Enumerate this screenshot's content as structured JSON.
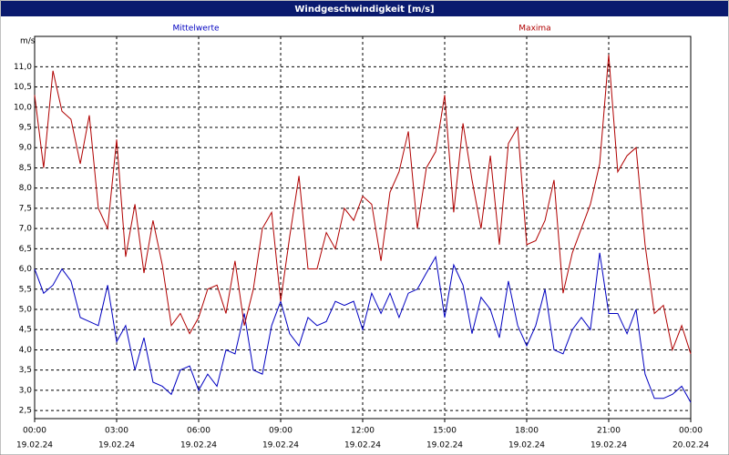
{
  "chart_data": {
    "type": "line",
    "title": "Windgeschwindigkeit [m/s]",
    "y_label": "m/s",
    "x": [
      0,
      0.33,
      0.67,
      1,
      1.33,
      1.67,
      2,
      2.33,
      2.67,
      3,
      3.33,
      3.67,
      4,
      4.33,
      4.67,
      5,
      5.33,
      5.67,
      6,
      6.33,
      6.67,
      7,
      7.33,
      7.67,
      8,
      8.33,
      8.67,
      9,
      9.33,
      9.67,
      10,
      10.33,
      10.67,
      11,
      11.33,
      11.67,
      12,
      12.33,
      12.67,
      13,
      13.33,
      13.67,
      14,
      14.33,
      14.67,
      15,
      15.33,
      15.67,
      16,
      16.33,
      16.67,
      17,
      17.33,
      17.67,
      18,
      18.33,
      18.67,
      19,
      19.33,
      19.67,
      20,
      20.33,
      20.67,
      21,
      21.33,
      21.67,
      22,
      22.33,
      22.67,
      23,
      23.33,
      23.67,
      24
    ],
    "series": [
      {
        "name": "Mittelwerte",
        "color": "#0000c0",
        "values": [
          6.0,
          5.4,
          5.6,
          6.0,
          5.7,
          4.8,
          4.7,
          4.6,
          5.6,
          4.2,
          4.6,
          3.5,
          4.3,
          3.2,
          3.1,
          2.9,
          3.5,
          3.6,
          3.0,
          3.4,
          3.1,
          4.0,
          3.9,
          4.9,
          3.5,
          3.4,
          4.6,
          5.2,
          4.4,
          4.1,
          4.8,
          4.6,
          4.7,
          5.2,
          5.1,
          5.2,
          4.5,
          5.4,
          4.9,
          5.4,
          4.8,
          5.4,
          5.5,
          5.9,
          6.3,
          4.8,
          6.1,
          5.6,
          4.4,
          5.3,
          5.0,
          4.3,
          5.7,
          4.6,
          4.1,
          4.6,
          5.5,
          4.0,
          3.9,
          4.5,
          4.8,
          4.5,
          6.4,
          4.9,
          4.9,
          4.4,
          5.0,
          3.4,
          2.8,
          2.8,
          2.9,
          3.1,
          2.7
        ]
      },
      {
        "name": "Maxima",
        "color": "#b00000",
        "values": [
          10.3,
          8.5,
          10.9,
          9.9,
          9.7,
          8.6,
          9.8,
          7.5,
          7.0,
          9.2,
          6.3,
          7.6,
          5.9,
          7.2,
          6.1,
          4.6,
          4.9,
          4.4,
          4.8,
          5.5,
          5.6,
          4.9,
          6.2,
          4.6,
          5.5,
          7.0,
          7.4,
          5.2,
          6.8,
          8.3,
          6.0,
          6.0,
          6.9,
          6.5,
          7.5,
          7.2,
          7.8,
          7.6,
          6.2,
          7.9,
          8.4,
          9.4,
          7.0,
          8.5,
          8.9,
          10.3,
          7.4,
          9.6,
          8.2,
          7.0,
          8.8,
          6.6,
          9.1,
          9.5,
          6.6,
          6.7,
          7.2,
          8.2,
          5.4,
          6.4,
          7.0,
          7.6,
          8.6,
          11.3,
          8.4,
          8.8,
          9.0,
          6.6,
          4.9,
          5.1,
          4.0,
          4.6,
          3.9
        ]
      }
    ],
    "xlim": [
      0,
      24
    ],
    "xticks": [
      {
        "value": 0,
        "label": "00:00"
      },
      {
        "value": 3,
        "label": "03:00"
      },
      {
        "value": 6,
        "label": "06:00"
      },
      {
        "value": 9,
        "label": "09:00"
      },
      {
        "value": 12,
        "label": "12:00"
      },
      {
        "value": 15,
        "label": "15:00"
      },
      {
        "value": 18,
        "label": "18:00"
      },
      {
        "value": 21,
        "label": "21:00"
      },
      {
        "value": 24,
        "label": "00:00"
      }
    ],
    "xtick_dates": [
      "19.02.24",
      "19.02.24",
      "19.02.24",
      "19.02.24",
      "19.02.24",
      "19.02.24",
      "19.02.24",
      "19.02.24",
      "20.02.24"
    ],
    "ylim": [
      2.3,
      11.75
    ],
    "yticks": [
      {
        "value": 2.5,
        "label": "2,5"
      },
      {
        "value": 3,
        "label": "3,0"
      },
      {
        "value": 3.5,
        "label": "3,5"
      },
      {
        "value": 4,
        "label": "4,0"
      },
      {
        "value": 4.5,
        "label": "4,5"
      },
      {
        "value": 5,
        "label": "5,0"
      },
      {
        "value": 5.5,
        "label": "5,5"
      },
      {
        "value": 6,
        "label": "6,0"
      },
      {
        "value": 6.5,
        "label": "6,5"
      },
      {
        "value": 7,
        "label": "7,0"
      },
      {
        "value": 7.5,
        "label": "7,5"
      },
      {
        "value": 8,
        "label": "8,0"
      },
      {
        "value": 8.5,
        "label": "8,5"
      },
      {
        "value": 9,
        "label": "9,0"
      },
      {
        "value": 9.5,
        "label": "9,5"
      },
      {
        "value": 10,
        "label": "10,0"
      },
      {
        "value": 10.5,
        "label": "10,5"
      },
      {
        "value": 11,
        "label": "11,0"
      }
    ],
    "grid": true
  }
}
